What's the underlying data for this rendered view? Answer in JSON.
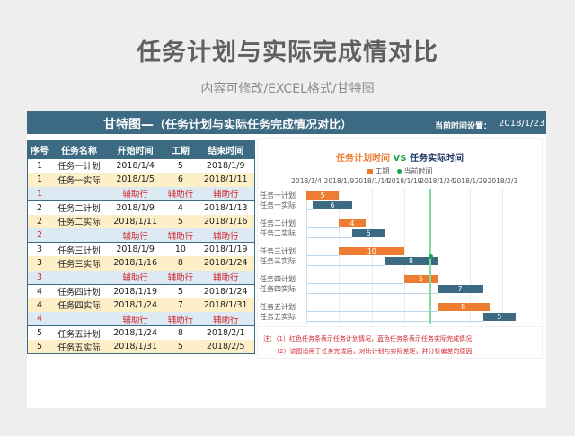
{
  "header": {
    "title": "任务计划与实际完成情对比",
    "subtitle": "内容可修改/EXCEL格式/甘特图"
  },
  "banner": {
    "title_main": "甘特图—",
    "title_paren": "（任务计划与实际任务完成情况对比）",
    "current_time_label": "当前时间设置：",
    "current_time_value": "2018/1/23"
  },
  "table": {
    "columns": [
      "序号",
      "任务名称",
      "开始时间",
      "工期",
      "结束时间"
    ],
    "rows": [
      {
        "type": "plan",
        "no": "1",
        "name": "任务一计划",
        "start": "2018/1/4",
        "duration": "5",
        "end": "2018/1/9"
      },
      {
        "type": "actual",
        "no": "1",
        "name": "任务一实际",
        "start": "2018/1/5",
        "duration": "6",
        "end": "2018/1/11"
      },
      {
        "type": "aux",
        "no": "1",
        "name": "",
        "start": "辅助行",
        "duration": "辅助行",
        "end": "辅助行"
      },
      {
        "type": "plan",
        "no": "2",
        "name": "任务二计划",
        "start": "2018/1/9",
        "duration": "4",
        "end": "2018/1/13"
      },
      {
        "type": "actual",
        "no": "2",
        "name": "任务二实际",
        "start": "2018/1/11",
        "duration": "5",
        "end": "2018/1/16"
      },
      {
        "type": "aux",
        "no": "2",
        "name": "",
        "start": "辅助行",
        "duration": "辅助行",
        "end": "辅助行"
      },
      {
        "type": "plan",
        "no": "3",
        "name": "任务三计划",
        "start": "2018/1/9",
        "duration": "10",
        "end": "2018/1/19"
      },
      {
        "type": "actual",
        "no": "3",
        "name": "任务三实际",
        "start": "2018/1/16",
        "duration": "8",
        "end": "2018/1/24"
      },
      {
        "type": "aux",
        "no": "3",
        "name": "",
        "start": "辅助行",
        "duration": "辅助行",
        "end": "辅助行"
      },
      {
        "type": "plan",
        "no": "4",
        "name": "任务四计划",
        "start": "2018/1/19",
        "duration": "5",
        "end": "2018/1/24"
      },
      {
        "type": "actual",
        "no": "4",
        "name": "任务四实际",
        "start": "2018/1/24",
        "duration": "7",
        "end": "2018/1/31"
      },
      {
        "type": "aux",
        "no": "4",
        "name": "",
        "start": "辅助行",
        "duration": "辅助行",
        "end": "辅助行"
      },
      {
        "type": "plan",
        "no": "5",
        "name": "任务五计划",
        "start": "2018/1/24",
        "duration": "8",
        "end": "2018/2/1"
      },
      {
        "type": "actual",
        "no": "5",
        "name": "任务五实际",
        "start": "2018/1/31",
        "duration": "5",
        "end": "2018/2/5"
      }
    ]
  },
  "chart": {
    "title_plan": "任务计划时间",
    "title_vs": "VS",
    "title_actual": "任务实际时间",
    "legend_duration": "工期",
    "legend_now": "当前时间"
  },
  "chart_data": {
    "type": "bar",
    "orientation": "horizontal-gantt",
    "title": "任务计划时间 VS 任务实际时间",
    "x_tick_labels": [
      "2018/1/4",
      "2018/1/9",
      "2018/1/14",
      "2018/1/19",
      "2018/1/24",
      "2018/1/29",
      "2018/2/3"
    ],
    "x_range": [
      "2018/1/4",
      "2018/2/8"
    ],
    "grid": true,
    "legend": [
      "工期",
      "当前时间"
    ],
    "legend_position": "top",
    "current_time": "2018/1/23",
    "categories": [
      "任务一计划",
      "任务一实际",
      "任务二计划",
      "任务二实际",
      "任务三计划",
      "任务三实际",
      "任务四计划",
      "任务四实际",
      "任务五计划",
      "任务五实际"
    ],
    "series": [
      {
        "name": "开始偏移(天)",
        "values": [
          0,
          1,
          5,
          7,
          5,
          12,
          15,
          20,
          20,
          27
        ]
      },
      {
        "name": "工期",
        "values": [
          5,
          6,
          4,
          5,
          10,
          8,
          5,
          7,
          8,
          5
        ]
      }
    ],
    "bar_kinds": [
      "plan",
      "actual",
      "plan",
      "actual",
      "plan",
      "actual",
      "plan",
      "actual",
      "plan",
      "actual"
    ],
    "colors": {
      "plan": "#ed7d31",
      "actual": "#3b6a82",
      "now": "#19a64a"
    }
  },
  "notes": {
    "line1": "注：（1）红色任务条表示任务计划情况，蓝色任务条表示任务实际完成情况",
    "line2": "（2）该图适用于任务完成后，对比计划与实际差距，并分析偏差的原因"
  }
}
